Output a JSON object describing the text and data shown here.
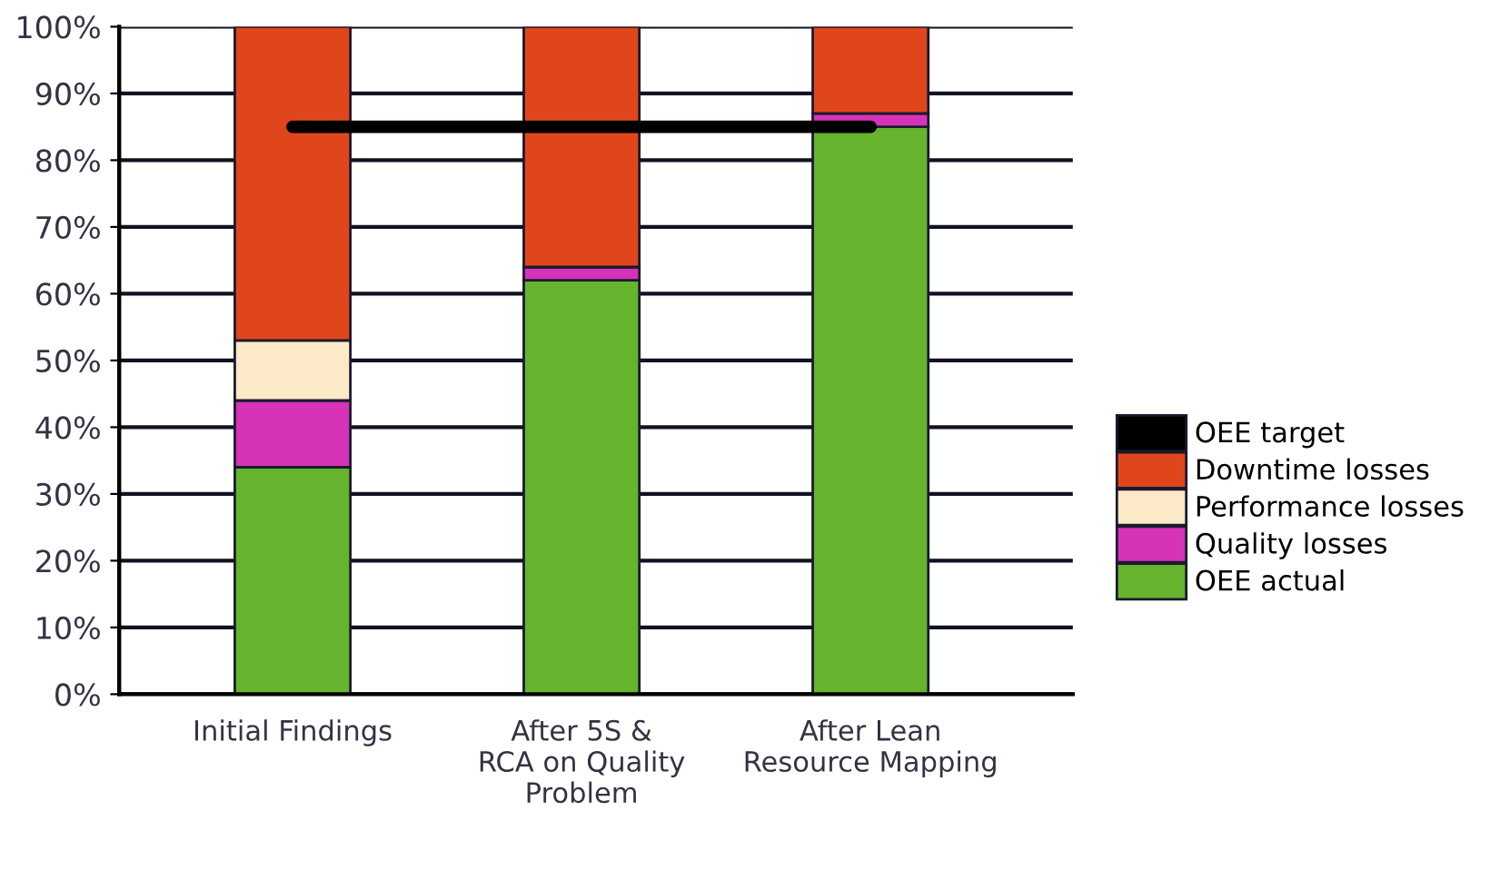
{
  "chart_data": {
    "type": "bar",
    "stacked": true,
    "categories": [
      "Initial Findings",
      "After 5S &\nRCA on Quality\nProblem",
      "After Lean\nResource Mapping"
    ],
    "series": [
      {
        "name": "OEE actual",
        "color": "#66b32e",
        "values": [
          34,
          62,
          85
        ]
      },
      {
        "name": "Quality losses",
        "color": "#d633b8",
        "values": [
          10,
          2,
          2
        ]
      },
      {
        "name": "Performance losses",
        "color": "#fbe9c8",
        "values": [
          9,
          0,
          0
        ]
      },
      {
        "name": "Downtime losses",
        "color": "#e0461c",
        "values": [
          47,
          36,
          13
        ]
      },
      {
        "name": "OEE target",
        "color": "#000000",
        "type": "line",
        "values": [
          85,
          85,
          85
        ]
      }
    ],
    "ylim": [
      0,
      100
    ],
    "yticks": [
      {
        "value": 0,
        "label": "0%"
      },
      {
        "value": 10,
        "label": "10%"
      },
      {
        "value": 20,
        "label": "20%"
      },
      {
        "value": 30,
        "label": "30%"
      },
      {
        "value": 40,
        "label": "40%"
      },
      {
        "value": 50,
        "label": "50%"
      },
      {
        "value": 60,
        "label": "60%"
      },
      {
        "value": 70,
        "label": "70%"
      },
      {
        "value": 80,
        "label": "80%"
      },
      {
        "value": 90,
        "label": "90%"
      },
      {
        "value": 100,
        "label": "100%"
      }
    ],
    "grid": "y",
    "legend": "right"
  }
}
